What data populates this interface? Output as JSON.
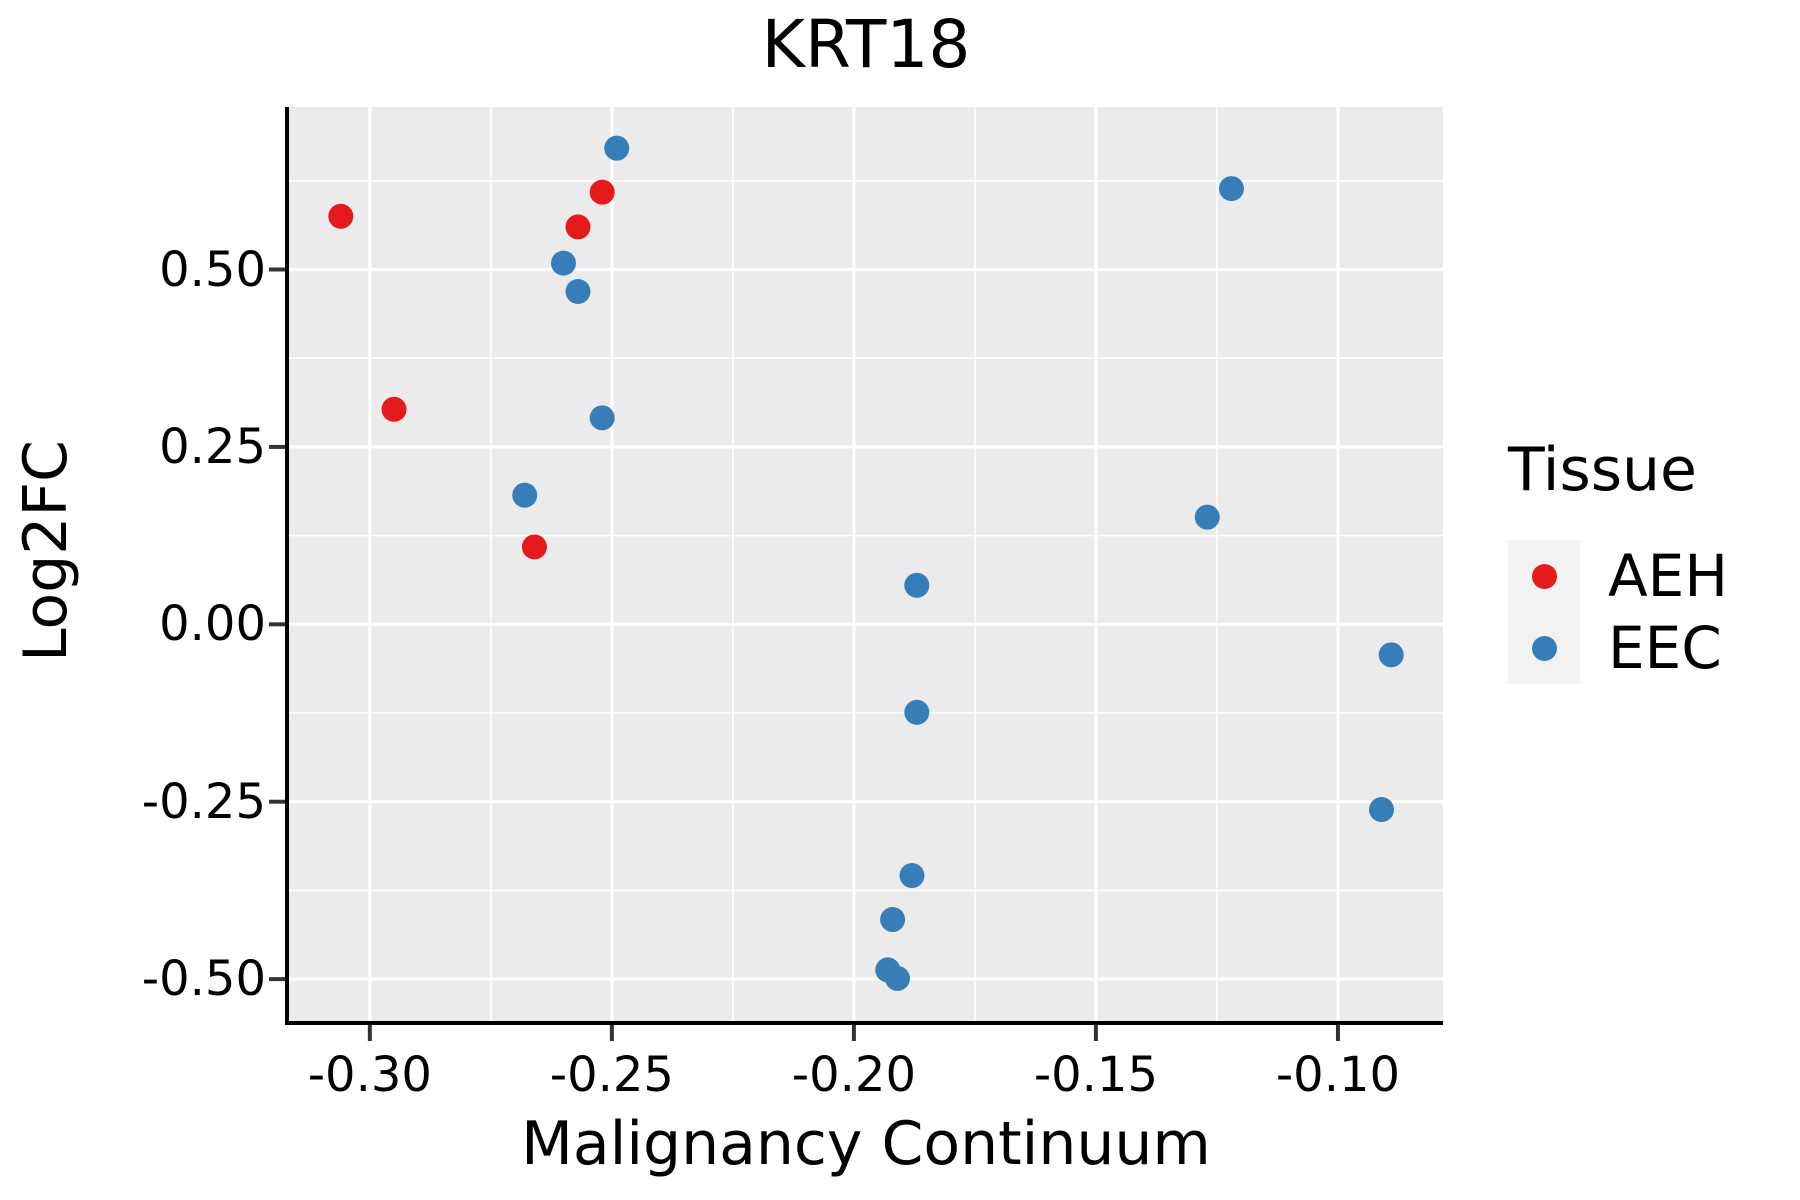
{
  "chart_data": {
    "type": "scatter",
    "title": "KRT18",
    "xlabel": "Malignancy Continuum",
    "ylabel": "Log2FC",
    "xlim": [
      -0.3167,
      -0.0783
    ],
    "ylim": [
      -0.559,
      0.729
    ],
    "grid": true,
    "panel_background": "#EBEBEB",
    "grid_color": "#FFFFFF",
    "axis_line_color": "#000000",
    "tick_mark_color": "#333333",
    "x_major_ticks": [
      -0.3,
      -0.25,
      -0.2,
      -0.15,
      -0.1
    ],
    "x_tick_labels": [
      "-0.30",
      "-0.25",
      "-0.20",
      "-0.15",
      "-0.10"
    ],
    "x_minor_ticks": [
      -0.275,
      -0.225,
      -0.175,
      -0.125
    ],
    "y_major_ticks": [
      0.5,
      0.25,
      0.0,
      -0.25,
      -0.5
    ],
    "y_tick_labels": [
      "0.50",
      "0.25",
      "0.00",
      "-0.25",
      "-0.50"
    ],
    "y_minor_ticks": [
      0.625,
      0.375,
      0.125,
      -0.125,
      -0.375
    ],
    "legend": {
      "title": "Tissue",
      "position": "right",
      "key_background": "#F2F2F2",
      "entries": [
        {
          "label": "AEH",
          "color": "#E41A1C"
        },
        {
          "label": "EEC",
          "color": "#377EB8"
        }
      ]
    },
    "series": [
      {
        "name": "AEH",
        "color": "#E41A1C",
        "points": [
          [
            -0.306,
            0.575
          ],
          [
            -0.295,
            0.303
          ],
          [
            -0.252,
            0.609
          ],
          [
            -0.257,
            0.56
          ],
          [
            -0.266,
            0.109
          ]
        ]
      },
      {
        "name": "EEC",
        "color": "#377EB8",
        "points": [
          [
            -0.249,
            0.671
          ],
          [
            -0.26,
            0.509
          ],
          [
            -0.257,
            0.469
          ],
          [
            -0.252,
            0.291
          ],
          [
            -0.268,
            0.182
          ],
          [
            -0.187,
            0.055
          ],
          [
            -0.187,
            -0.124
          ],
          [
            -0.188,
            -0.354
          ],
          [
            -0.192,
            -0.416
          ],
          [
            -0.193,
            -0.487
          ],
          [
            -0.191,
            -0.499
          ],
          [
            -0.122,
            0.614
          ],
          [
            -0.127,
            0.151
          ],
          [
            -0.089,
            -0.043
          ],
          [
            -0.091,
            -0.261
          ]
        ]
      }
    ]
  }
}
